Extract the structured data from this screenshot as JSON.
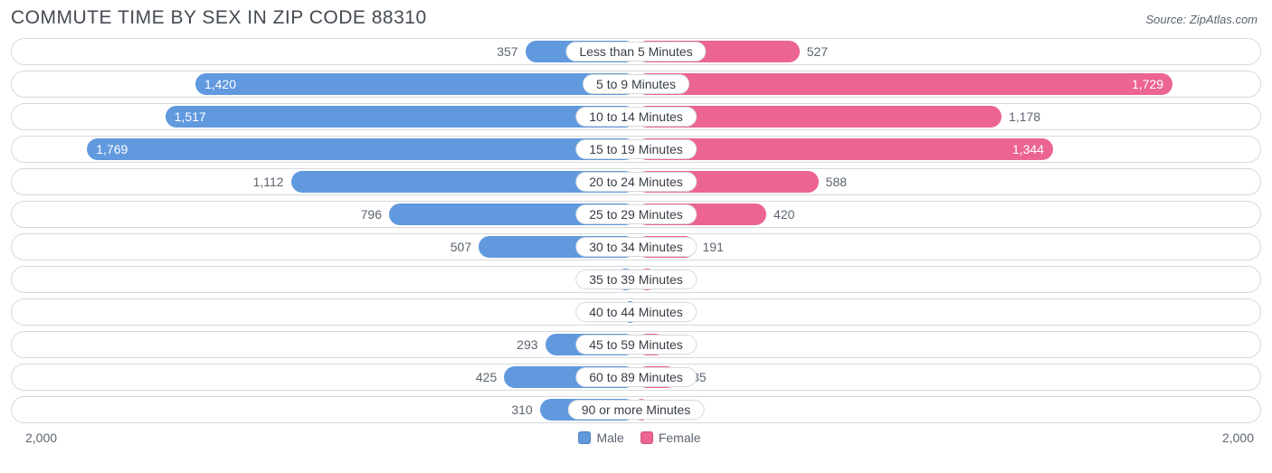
{
  "title": "COMMUTE TIME BY SEX IN ZIP CODE 88310",
  "source": "Source: ZipAtlas.com",
  "chart": {
    "type": "diverging-bar",
    "axis_max": 2000,
    "axis_max_label": "2,000",
    "background_color": "#ffffff",
    "row_border_color": "#d6d9dd",
    "text_color": "#5c6470",
    "pill_text_color": "#383e47",
    "inside_label_threshold": 1300,
    "series": [
      {
        "key": "male",
        "label": "Male",
        "color": "#6199df"
      },
      {
        "key": "female",
        "label": "Female",
        "color": "#ec6493"
      }
    ],
    "categories": [
      {
        "label": "Less than 5 Minutes",
        "male": 357,
        "male_fmt": "357",
        "female": 527,
        "female_fmt": "527"
      },
      {
        "label": "5 to 9 Minutes",
        "male": 1420,
        "male_fmt": "1,420",
        "female": 1729,
        "female_fmt": "1,729"
      },
      {
        "label": "10 to 14 Minutes",
        "male": 1517,
        "male_fmt": "1,517",
        "female": 1178,
        "female_fmt": "1,178"
      },
      {
        "label": "15 to 19 Minutes",
        "male": 1769,
        "male_fmt": "1,769",
        "female": 1344,
        "female_fmt": "1,344"
      },
      {
        "label": "20 to 24 Minutes",
        "male": 1112,
        "male_fmt": "1,112",
        "female": 588,
        "female_fmt": "588"
      },
      {
        "label": "25 to 29 Minutes",
        "male": 796,
        "male_fmt": "796",
        "female": 420,
        "female_fmt": "420"
      },
      {
        "label": "30 to 34 Minutes",
        "male": 507,
        "male_fmt": "507",
        "female": 191,
        "female_fmt": "191"
      },
      {
        "label": "35 to 39 Minutes",
        "male": 68,
        "male_fmt": "68",
        "female": 70,
        "female_fmt": "70"
      },
      {
        "label": "40 to 44 Minutes",
        "male": 38,
        "male_fmt": "38",
        "female": 0,
        "female_fmt": "0"
      },
      {
        "label": "45 to 59 Minutes",
        "male": 293,
        "male_fmt": "293",
        "female": 95,
        "female_fmt": "95"
      },
      {
        "label": "60 to 89 Minutes",
        "male": 425,
        "male_fmt": "425",
        "female": 135,
        "female_fmt": "135"
      },
      {
        "label": "90 or more Minutes",
        "male": 310,
        "male_fmt": "310",
        "female": 35,
        "female_fmt": "35"
      }
    ]
  }
}
